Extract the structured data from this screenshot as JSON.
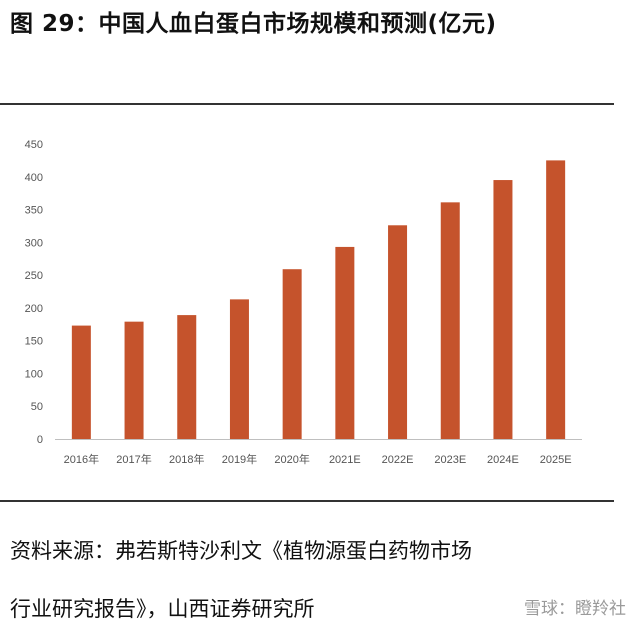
{
  "figure": {
    "title": "图 29：中国人血白蛋白市场规模和预测(亿元)",
    "source_line1": "资料来源：弗若斯特沙利文《植物源蛋白药物市场",
    "source_line2": "行业研究报告》，山西证券研究所",
    "watermark": "雪球：瞪羚社"
  },
  "chart_data": {
    "type": "bar",
    "categories": [
      "2016年",
      "2017年",
      "2018年",
      "2019年",
      "2020年",
      "2021E",
      "2022E",
      "2023E",
      "2024E",
      "2025E"
    ],
    "values": [
      173,
      179,
      189,
      213,
      259,
      293,
      326,
      361,
      395,
      425
    ],
    "title": "",
    "xlabel": "",
    "ylabel": "",
    "ylim": [
      0,
      450
    ],
    "yticks": [
      0,
      50,
      100,
      150,
      200,
      250,
      300,
      350,
      400,
      450
    ],
    "bar_color": "#C5532C",
    "grid": false,
    "legend": "none"
  }
}
